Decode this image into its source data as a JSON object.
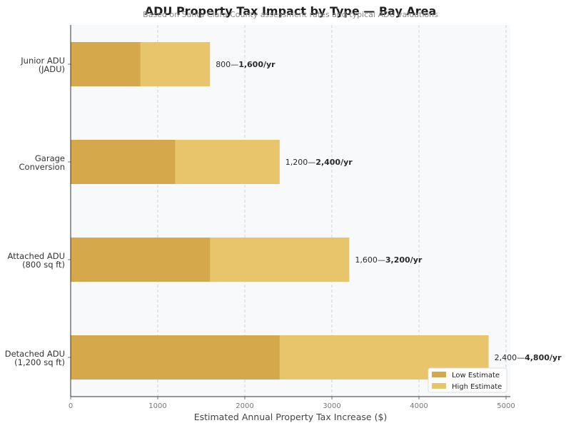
{
  "colors": {
    "low": "#d4a84b",
    "high": "#e8c46a",
    "plot_bg": "#f8f9fa",
    "grid": "#c8c8c8"
  },
  "chart_data": {
    "type": "bar",
    "orientation": "horizontal",
    "title": "ADU Property Tax Impact by Type — Bay Area",
    "subtitle": "Based on Santa Clara County assessment rates and typical ADU valuations",
    "xlabel": "Estimated Annual Property Tax Increase ($)",
    "ylabel": "",
    "xlim": [
      0,
      5000
    ],
    "xticks": [
      0,
      1000,
      2000,
      3000,
      4000,
      5000
    ],
    "grid": "x-dashed",
    "legend_position": "bottom-right",
    "categories": [
      [
        "Junior ADU",
        "(JADU)"
      ],
      [
        "Garage",
        "Conversion"
      ],
      [
        "Attached ADU",
        "(800 sq ft)"
      ],
      [
        "Detached ADU",
        "(1,200 sq ft)"
      ]
    ],
    "series": [
      {
        "name": "Low Estimate",
        "values": [
          800,
          1200,
          1600,
          2400
        ]
      },
      {
        "name": "High Estimate",
        "values": [
          1600,
          2400,
          3200,
          4800
        ]
      }
    ],
    "value_labels": [
      {
        "low": "800—",
        "high": "1,600/yr"
      },
      {
        "low": "1,200—",
        "high": "2,400/yr"
      },
      {
        "low": "1,600—",
        "high": "3,200/yr"
      },
      {
        "low": "2,400—",
        "high": "4,800/yr"
      }
    ]
  }
}
